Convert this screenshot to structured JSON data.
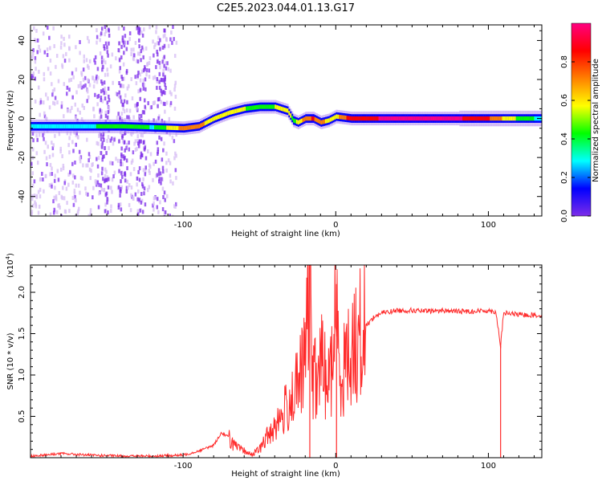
{
  "page": {
    "title": "C2E5.2023.044.01.13.G17"
  },
  "chart_data": [
    {
      "type": "heatmap",
      "title": "C2E5.2023.044.01.13.G17",
      "xlabel": "Height of straight line (km)",
      "ylabel": "Frequency (Hz)",
      "xlim": [
        -200,
        135
      ],
      "ylim": [
        -50,
        48
      ],
      "x_ticks": [
        -100,
        0,
        100
      ],
      "x_tick_labels": [
        "-100",
        "0",
        "100"
      ],
      "y_ticks": [
        -40,
        -20,
        0,
        20,
        40
      ],
      "y_tick_labels": [
        "-40",
        "-20",
        "0",
        "20",
        "40"
      ],
      "colorbar": {
        "label": "Normalized spectral amplitude",
        "range": [
          0,
          1
        ],
        "ticks": [
          0.0,
          0.2,
          0.4,
          0.6,
          0.8
        ],
        "tick_labels": [
          "0.0",
          "0.2",
          "0.4",
          "0.6",
          "0.8"
        ],
        "colormap": [
          "#ffffff",
          "#7d2de8",
          "#0000ff",
          "#00ffff",
          "#00ff00",
          "#ffff00",
          "#ff8000",
          "#ff0000",
          "#ff0080"
        ]
      },
      "ridge": {
        "name": "",
        "x": [
          -200,
          -180,
          -160,
          -140,
          -120,
          -100,
          -90,
          -80,
          -70,
          -60,
          -50,
          -40,
          -32,
          -28,
          -25,
          -20,
          -15,
          -10,
          -5,
          0,
          10,
          40,
          80,
          100,
          120,
          135
        ],
        "y": [
          -4,
          -4,
          -4,
          -4,
          -4.5,
          -5,
          -4,
          0,
          3,
          5,
          6,
          6,
          4,
          -1,
          -2,
          0,
          0,
          -2,
          -1,
          1,
          0,
          0,
          0,
          0,
          0,
          0
        ],
        "amplitude": [
          0.35,
          0.35,
          0.35,
          0.4,
          0.35,
          0.7,
          0.7,
          0.55,
          0.5,
          0.5,
          0.45,
          0.5,
          0.6,
          0.45,
          0.55,
          0.75,
          0.8,
          0.7,
          0.6,
          0.6,
          0.9,
          0.95,
          0.95,
          0.8,
          0.45,
          0.3
        ]
      }
    },
    {
      "type": "line",
      "xlabel": "Height of straight line (km)",
      "ylabel": "SNR (10 * v/v)",
      "y_multiplier_label": "(x10",
      "y_multiplier_exp": "4",
      "xlim": [
        -200,
        135
      ],
      "ylim": [
        0,
        23300
      ],
      "x_ticks": [
        -100,
        0,
        100
      ],
      "x_tick_labels": [
        "-100",
        "0",
        "100"
      ],
      "y_ticks": [
        5000,
        10000,
        15000,
        20000
      ],
      "y_tick_labels": [
        "0.5",
        "1.0",
        "1.5",
        "2.0"
      ],
      "color": "#ff2a2a",
      "series": [
        {
          "name": "",
          "x": [
            -200,
            -180,
            -160,
            -140,
            -120,
            -100,
            -90,
            -80,
            -75,
            -70,
            -65,
            -60,
            -55,
            -50,
            -45,
            -40,
            -35,
            -30,
            -25,
            -20,
            -17,
            -15,
            -12,
            -10,
            -5,
            -2,
            0,
            2,
            5,
            10,
            15,
            20,
            25,
            30,
            40,
            50,
            60,
            70,
            80,
            90,
            100,
            105,
            108,
            110,
            120,
            135
          ],
          "y": [
            200,
            500,
            300,
            200,
            200,
            300,
            800,
            1500,
            3000,
            2500,
            1200,
            800,
            400,
            1000,
            2500,
            4000,
            5000,
            7000,
            8500,
            12000,
            23300,
            10000,
            9000,
            12000,
            9000,
            11000,
            21000,
            10000,
            11000,
            13000,
            14500,
            16000,
            17000,
            17500,
            17800,
            17800,
            17700,
            17800,
            17700,
            17700,
            17800,
            17600,
            13500,
            17500,
            17300,
            17200
          ]
        }
      ]
    }
  ]
}
